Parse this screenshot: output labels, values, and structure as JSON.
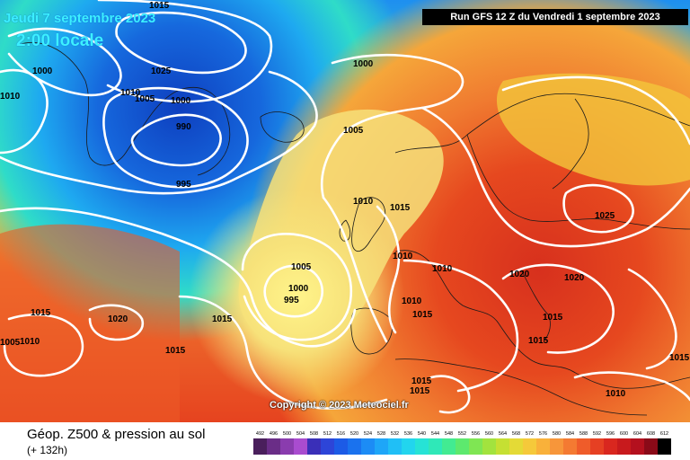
{
  "header": {
    "date": "Jeudi 7 septembre 2023",
    "local_time": "2:00 locale",
    "run": "Run GFS 12 Z du Vendredi 1 septembre 2023"
  },
  "map": {
    "copyright": "Copyright © 2023 Meteociel.fr",
    "pressure_labels": [
      "1015",
      "1000",
      "1025",
      "1010",
      "1005",
      "1000",
      "990",
      "995",
      "1000",
      "1005",
      "1010",
      "1015",
      "1005",
      "1000",
      "995",
      "1015",
      "1010",
      "1010",
      "1010",
      "1015",
      "1020",
      "1020",
      "1015",
      "1015",
      "1025",
      "1015",
      "1020",
      "1015",
      "1005",
      "1010",
      "1015",
      "1015",
      "1010",
      "1010",
      "1015"
    ],
    "colors": {
      "low_geopotential": "#1a5fd9",
      "high_geopotential": "#e8411d",
      "isobar": "#ffffff"
    }
  },
  "legend": {
    "title": "Géop. Z500 & pression au sol",
    "forecast_hour": "(+ 132h)",
    "scale_values": [
      "492",
      "496",
      "500",
      "504",
      "508",
      "512",
      "516",
      "520",
      "524",
      "528",
      "532",
      "536",
      "540",
      "544",
      "548",
      "552",
      "556",
      "560",
      "564",
      "568",
      "572",
      "576",
      "580",
      "584",
      "588",
      "592",
      "596",
      "600",
      "604",
      "608",
      "612"
    ],
    "scale_colors": [
      "#4a1f5c",
      "#6a2d87",
      "#8a3cae",
      "#a94ccf",
      "#3a2fb8",
      "#2d45d8",
      "#1c5be6",
      "#1a72ee",
      "#1c8cf5",
      "#1ea6f8",
      "#20bff6",
      "#22d5ee",
      "#26e3d6",
      "#2fe8b8",
      "#42eb92",
      "#5de96e",
      "#7fe653",
      "#a2e33e",
      "#c5e033",
      "#e4da36",
      "#f5c93a",
      "#f9b13a",
      "#f7963a",
      "#f47a32",
      "#ef5c2a",
      "#e64023",
      "#d9271f",
      "#c81a1d",
      "#b4101e",
      "#8a0a18",
      "#000000"
    ]
  }
}
